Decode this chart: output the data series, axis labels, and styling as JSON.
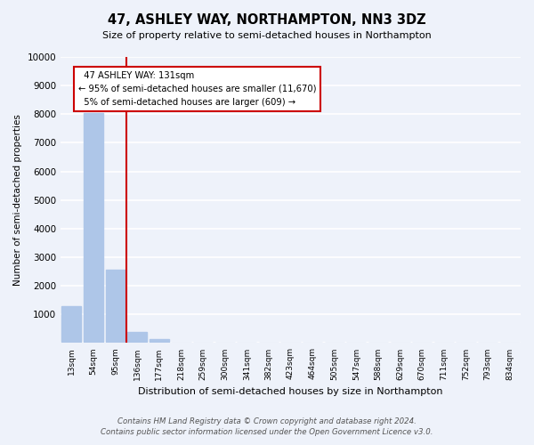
{
  "title": "47, ASHLEY WAY, NORTHAMPTON, NN3 3DZ",
  "subtitle": "Size of property relative to semi-detached houses in Northampton",
  "xlabel": "Distribution of semi-detached houses by size in Northampton",
  "ylabel": "Number of semi-detached properties",
  "bar_labels": [
    "13sqm",
    "54sqm",
    "95sqm",
    "136sqm",
    "177sqm",
    "218sqm",
    "259sqm",
    "300sqm",
    "341sqm",
    "382sqm",
    "423sqm",
    "464sqm",
    "505sqm",
    "547sqm",
    "588sqm",
    "629sqm",
    "670sqm",
    "711sqm",
    "752sqm",
    "793sqm",
    "834sqm"
  ],
  "bar_values": [
    1300,
    8050,
    2550,
    400,
    150,
    0,
    0,
    0,
    0,
    0,
    0,
    0,
    0,
    0,
    0,
    0,
    0,
    0,
    0,
    0,
    0
  ],
  "bar_color": "#aec6e8",
  "property_label": "47 ASHLEY WAY: 131sqm",
  "smaller_pct": 95,
  "smaller_count": 11670,
  "larger_pct": 5,
  "larger_count": 609,
  "line_color": "#cc0000",
  "ylim": [
    0,
    10000
  ],
  "yticks": [
    0,
    1000,
    2000,
    3000,
    4000,
    5000,
    6000,
    7000,
    8000,
    9000,
    10000
  ],
  "annotation_box_color": "#ffffff",
  "annotation_box_edge": "#cc0000",
  "footer1": "Contains HM Land Registry data © Crown copyright and database right 2024.",
  "footer2": "Contains public sector information licensed under the Open Government Licence v3.0.",
  "bg_color": "#eef2fa"
}
